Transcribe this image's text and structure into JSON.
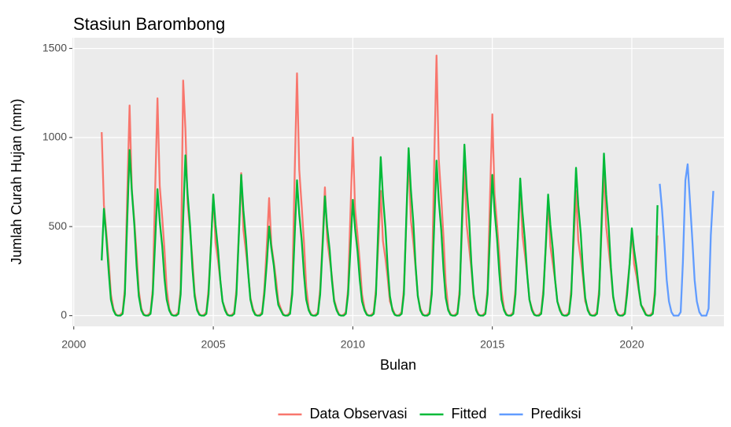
{
  "chart_data": {
    "type": "line",
    "title": "Stasiun Barombong",
    "x_label": "Bulan",
    "y_label": "Jumlah Curah Hujan (mm)",
    "xlim": [
      1999.95,
      2023.3
    ],
    "ylim": [
      -60,
      1560
    ],
    "xticks": [
      2000,
      2005,
      2010,
      2015,
      2020
    ],
    "yticks": [
      0,
      500,
      1000,
      1500
    ],
    "grid": true,
    "legend": "bottom",
    "x": [
      2001,
      2001.08,
      2001.17,
      2001.25,
      2001.33,
      2001.42,
      2001.5,
      2001.58,
      2001.67,
      2001.75,
      2001.83,
      2001.92,
      2002,
      2002.08,
      2002.17,
      2002.25,
      2002.33,
      2002.42,
      2002.5,
      2002.58,
      2002.67,
      2002.75,
      2002.83,
      2002.92,
      2003,
      2003.08,
      2003.17,
      2003.25,
      2003.33,
      2003.42,
      2003.5,
      2003.58,
      2003.67,
      2003.75,
      2003.83,
      2003.92,
      2004,
      2004.08,
      2004.17,
      2004.25,
      2004.33,
      2004.42,
      2004.5,
      2004.58,
      2004.67,
      2004.75,
      2004.83,
      2004.92,
      2005,
      2005.08,
      2005.17,
      2005.25,
      2005.33,
      2005.42,
      2005.5,
      2005.58,
      2005.67,
      2005.75,
      2005.83,
      2005.92,
      2006,
      2006.08,
      2006.17,
      2006.25,
      2006.33,
      2006.42,
      2006.5,
      2006.58,
      2006.67,
      2006.75,
      2006.83,
      2006.92,
      2007,
      2007.08,
      2007.17,
      2007.25,
      2007.33,
      2007.42,
      2007.5,
      2007.58,
      2007.67,
      2007.75,
      2007.83,
      2007.92,
      2008,
      2008.08,
      2008.17,
      2008.25,
      2008.33,
      2008.42,
      2008.5,
      2008.58,
      2008.67,
      2008.75,
      2008.83,
      2008.92,
      2009,
      2009.08,
      2009.17,
      2009.25,
      2009.33,
      2009.42,
      2009.5,
      2009.58,
      2009.67,
      2009.75,
      2009.83,
      2009.92,
      2010,
      2010.08,
      2010.17,
      2010.25,
      2010.33,
      2010.42,
      2010.5,
      2010.58,
      2010.67,
      2010.75,
      2010.83,
      2010.92,
      2011,
      2011.08,
      2011.17,
      2011.25,
      2011.33,
      2011.42,
      2011.5,
      2011.58,
      2011.67,
      2011.75,
      2011.83,
      2011.92,
      2012,
      2012.08,
      2012.17,
      2012.25,
      2012.33,
      2012.42,
      2012.5,
      2012.58,
      2012.67,
      2012.75,
      2012.83,
      2012.92,
      2013,
      2013.08,
      2013.17,
      2013.25,
      2013.33,
      2013.42,
      2013.5,
      2013.58,
      2013.67,
      2013.75,
      2013.83,
      2013.92,
      2014,
      2014.08,
      2014.17,
      2014.25,
      2014.33,
      2014.42,
      2014.5,
      2014.58,
      2014.67,
      2014.75,
      2014.83,
      2014.92,
      2015,
      2015.08,
      2015.17,
      2015.25,
      2015.33,
      2015.42,
      2015.5,
      2015.58,
      2015.67,
      2015.75,
      2015.83,
      2015.92,
      2016,
      2016.08,
      2016.17,
      2016.25,
      2016.33,
      2016.42,
      2016.5,
      2016.58,
      2016.67,
      2016.75,
      2016.83,
      2016.92,
      2017,
      2017.08,
      2017.17,
      2017.25,
      2017.33,
      2017.42,
      2017.5,
      2017.58,
      2017.67,
      2017.75,
      2017.83,
      2017.92,
      2018,
      2018.08,
      2018.17,
      2018.25,
      2018.33,
      2018.42,
      2018.5,
      2018.58,
      2018.67,
      2018.75,
      2018.83,
      2018.92,
      2019,
      2019.08,
      2019.17,
      2019.25,
      2019.33,
      2019.42,
      2019.5,
      2019.58,
      2019.67,
      2019.75,
      2019.83,
      2019.92,
      2020,
      2020.08,
      2020.17,
      2020.25,
      2020.33,
      2020.42,
      2020.5,
      2020.58,
      2020.67,
      2020.75,
      2020.83,
      2020.92
    ],
    "series": [
      {
        "name": "Data Observasi",
        "color": "#f8766d",
        "values": [
          1030,
          620,
          460,
          310,
          120,
          40,
          10,
          0,
          5,
          20,
          150,
          700,
          1180,
          710,
          530,
          350,
          140,
          40,
          10,
          0,
          5,
          20,
          150,
          730,
          1220,
          730,
          550,
          370,
          150,
          40,
          10,
          0,
          5,
          20,
          150,
          1320,
          1050,
          630,
          470,
          320,
          130,
          40,
          10,
          0,
          5,
          20,
          150,
          410,
          680,
          410,
          310,
          200,
          80,
          40,
          10,
          0,
          5,
          20,
          150,
          480,
          800,
          480,
          360,
          240,
          100,
          40,
          10,
          0,
          5,
          20,
          150,
          400,
          660,
          400,
          300,
          200,
          80,
          40,
          10,
          0,
          5,
          20,
          150,
          820,
          1360,
          820,
          610,
          410,
          160,
          40,
          10,
          0,
          5,
          20,
          150,
          430,
          720,
          430,
          320,
          220,
          90,
          40,
          10,
          0,
          5,
          20,
          150,
          600,
          1000,
          600,
          450,
          300,
          120,
          40,
          10,
          0,
          5,
          20,
          150,
          420,
          700,
          420,
          320,
          210,
          80,
          40,
          10,
          0,
          5,
          20,
          150,
          540,
          900,
          540,
          410,
          270,
          110,
          40,
          10,
          0,
          5,
          20,
          150,
          880,
          1460,
          880,
          660,
          440,
          180,
          40,
          10,
          0,
          5,
          20,
          150,
          510,
          850,
          510,
          380,
          260,
          100,
          40,
          10,
          0,
          5,
          20,
          150,
          680,
          1130,
          680,
          510,
          340,
          140,
          40,
          10,
          0,
          5,
          20,
          150,
          450,
          750,
          450,
          340,
          230,
          90,
          40,
          10,
          0,
          5,
          20,
          150,
          390,
          650,
          390,
          290,
          200,
          80,
          40,
          10,
          0,
          5,
          20,
          150,
          420,
          700,
          420,
          320,
          210,
          80,
          40,
          10,
          0,
          5,
          20,
          150,
          500,
          830,
          500,
          370,
          250,
          100,
          40,
          10,
          0,
          5,
          20,
          150,
          290,
          480,
          290,
          220,
          140,
          60,
          40,
          10,
          0,
          5,
          20,
          150,
          450
        ]
      },
      {
        "name": "Fitted",
        "color": "#00ba38",
        "values": [
          310,
          600,
          430,
          250,
          90,
          30,
          5,
          0,
          0,
          10,
          120,
          560,
          930,
          700,
          510,
          280,
          110,
          30,
          5,
          0,
          0,
          10,
          120,
          430,
          710,
          530,
          390,
          210,
          90,
          30,
          5,
          0,
          0,
          10,
          120,
          540,
          900,
          680,
          500,
          270,
          110,
          30,
          5,
          0,
          0,
          10,
          120,
          410,
          680,
          510,
          370,
          200,
          80,
          30,
          5,
          0,
          0,
          10,
          120,
          470,
          790,
          590,
          430,
          240,
          90,
          30,
          5,
          0,
          0,
          10,
          120,
          300,
          500,
          380,
          280,
          150,
          60,
          30,
          5,
          0,
          0,
          10,
          120,
          460,
          760,
          570,
          420,
          230,
          90,
          30,
          5,
          0,
          0,
          10,
          120,
          400,
          670,
          500,
          370,
          200,
          80,
          30,
          5,
          0,
          0,
          10,
          120,
          390,
          650,
          490,
          360,
          200,
          80,
          30,
          5,
          0,
          0,
          10,
          120,
          530,
          890,
          670,
          490,
          270,
          110,
          30,
          5,
          0,
          0,
          10,
          120,
          560,
          940,
          710,
          520,
          280,
          110,
          30,
          5,
          0,
          0,
          10,
          120,
          520,
          870,
          650,
          480,
          260,
          100,
          30,
          5,
          0,
          0,
          10,
          120,
          580,
          960,
          720,
          530,
          290,
          120,
          30,
          5,
          0,
          0,
          10,
          120,
          470,
          790,
          590,
          430,
          240,
          90,
          30,
          5,
          0,
          0,
          10,
          120,
          460,
          770,
          580,
          420,
          230,
          90,
          30,
          5,
          0,
          0,
          10,
          120,
          410,
          680,
          510,
          370,
          200,
          80,
          30,
          5,
          0,
          0,
          10,
          120,
          500,
          830,
          620,
          460,
          250,
          100,
          30,
          5,
          0,
          0,
          10,
          120,
          550,
          910,
          680,
          500,
          270,
          110,
          30,
          5,
          0,
          0,
          10,
          120,
          290,
          490,
          370,
          270,
          150,
          60,
          30,
          5,
          0,
          0,
          10,
          120,
          620
        ]
      },
      {
        "name": "Prediksi",
        "color": "#619cff",
        "x": [
          2021,
          2021.08,
          2021.17,
          2021.25,
          2021.33,
          2021.42,
          2021.5,
          2021.58,
          2021.67,
          2021.75,
          2021.83,
          2021.92,
          2022,
          2022.08,
          2022.17,
          2022.25,
          2022.33,
          2022.42,
          2022.5,
          2022.58,
          2022.67,
          2022.75,
          2022.83,
          2022.92
        ],
        "values": [
          740,
          600,
          400,
          200,
          80,
          20,
          0,
          0,
          0,
          20,
          300,
          760,
          850,
          650,
          420,
          200,
          80,
          20,
          0,
          0,
          0,
          40,
          450,
          700
        ]
      }
    ]
  }
}
